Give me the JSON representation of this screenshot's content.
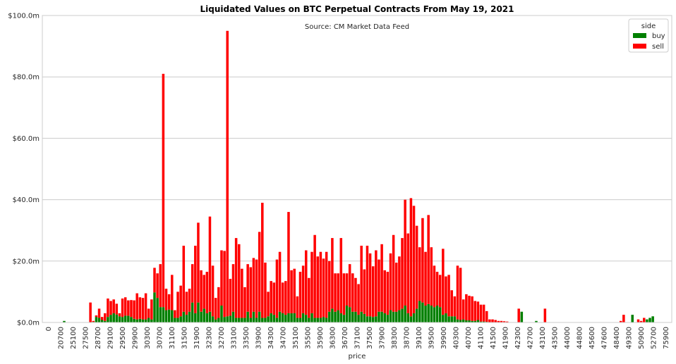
{
  "chart_data": {
    "type": "bar",
    "stacked": true,
    "title": "Liquidated Values on BTC Perpetual Contracts From May 19, 2021",
    "subtitle": "Source: CM Market Data Feed",
    "xlabel": "price",
    "ylabel": "",
    "ylim": [
      0,
      100
    ],
    "yticks": [
      0,
      20,
      40,
      60,
      80,
      100
    ],
    "ytick_labels": [
      "$0.0m",
      "$20.0m",
      "$40.0m",
      "$60.0m",
      "$80.0m",
      "$100.0m"
    ],
    "xtick_labels": [
      "0",
      "20700",
      "25100",
      "27500",
      "28700",
      "29100",
      "29500",
      "29900",
      "30300",
      "30700",
      "31100",
      "31500",
      "31900",
      "32300",
      "32700",
      "33100",
      "33500",
      "33900",
      "34300",
      "34700",
      "35100",
      "35500",
      "35900",
      "36300",
      "36700",
      "37100",
      "37500",
      "37900",
      "38300",
      "38700",
      "39100",
      "39500",
      "39900",
      "40300",
      "40700",
      "41100",
      "41500",
      "41900",
      "42300",
      "42700",
      "43100",
      "43500",
      "44000",
      "44800",
      "45600",
      "47600",
      "48400",
      "49300",
      "50900",
      "52700",
      "75900"
    ],
    "grid": "horizontal",
    "legend": {
      "title": "side",
      "placement": "top-right",
      "entries": [
        "buy",
        "sell"
      ]
    },
    "colors": {
      "buy": "#008000",
      "sell": "#ff0000"
    },
    "series": [
      {
        "name": "buy",
        "values": [
          0,
          0,
          0,
          0,
          0,
          0,
          0,
          0.5,
          0,
          0,
          0,
          0,
          0,
          0,
          0,
          0,
          0,
          0.2,
          1.8,
          1.5,
          0.8,
          0.5,
          1.8,
          2.5,
          3.0,
          2.6,
          2.0,
          1.8,
          2.2,
          2.2,
          1.8,
          1.2,
          1.0,
          1.2,
          1.0,
          1.0,
          1.5,
          1.0,
          9.8,
          8.0,
          5.0,
          5.0,
          4.0,
          4.2,
          4.0,
          1.5,
          1.5,
          2.0,
          3.5,
          2.5,
          3.5,
          6.5,
          3.0,
          6.5,
          3.5,
          4.5,
          3.0,
          3.5,
          2.0,
          1.0,
          1.5,
          5.5,
          1.8,
          2.0,
          2.2,
          3.5,
          1.5,
          1.5,
          1.5,
          1.5,
          3.5,
          1.5,
          3.5,
          1.5,
          3.5,
          1.5,
          1.5,
          2.0,
          3.0,
          2.5,
          1.5,
          3.5,
          3.0,
          2.5,
          3.0,
          3.0,
          3.0,
          1.5,
          1.5,
          3.0,
          2.5,
          1.5,
          3.0,
          1.5,
          1.5,
          1.5,
          1.8,
          1.5,
          3.5,
          4.5,
          3.5,
          4.0,
          3.0,
          2.5,
          5.5,
          5.0,
          3.5,
          3.5,
          2.5,
          3.5,
          2.8,
          2.0,
          2.0,
          1.8,
          2.0,
          3.5,
          3.5,
          3.0,
          2.5,
          4.0,
          3.5,
          3.5,
          4.0,
          4.5,
          5.5,
          3.0,
          2.0,
          3.0,
          4.5,
          7.0,
          6.5,
          5.5,
          6.0,
          5.5,
          5.0,
          5.5,
          5.0,
          2.5,
          3.0,
          2.0,
          2.0,
          2.0,
          1.0,
          0.8,
          1.0,
          0.7,
          0.7,
          0.5,
          0.5,
          0.8,
          0.3,
          0.3,
          0.2,
          0,
          0,
          0,
          0,
          0,
          0,
          0,
          0,
          0,
          0,
          0,
          3.5,
          0,
          0,
          0,
          0,
          0.5,
          0,
          0,
          0,
          0,
          0,
          0,
          0,
          0,
          0,
          0,
          0,
          0,
          0,
          0,
          0,
          0,
          0,
          0,
          0,
          0,
          0,
          0,
          0,
          0,
          0,
          0,
          0,
          0,
          0,
          0,
          0,
          0,
          2.5,
          0,
          0,
          0,
          0,
          1.0,
          1.5,
          2.0,
          0,
          0,
          0,
          0,
          0,
          0
        ],
        "extra": {}
      },
      {
        "name": "sell",
        "values": [
          0,
          0,
          0,
          0,
          0,
          0,
          0,
          0,
          0,
          0,
          0,
          0,
          0,
          0,
          0,
          0,
          6.5,
          0.3,
          0.5,
          3.0,
          1.0,
          2.5,
          6.0,
          4.5,
          4.5,
          3.5,
          1.0,
          6.0,
          6.0,
          5.0,
          5.5,
          6.0,
          8.5,
          7.0,
          7.0,
          8.5,
          3.0,
          6.5,
          8.0,
          8.0,
          14.0,
          76.0,
          7.0,
          5.0,
          11.5,
          2.5,
          8.5,
          10.0,
          21.5,
          7.5,
          7.5,
          12.5,
          22.0,
          26.0,
          13.5,
          11.0,
          13.5,
          31.0,
          16.5,
          7.0,
          10.0,
          18.0,
          21.5,
          93.0,
          12.0,
          15.5,
          26.0,
          24.0,
          16.0,
          10.0,
          15.5,
          16.5,
          17.5,
          19.0,
          26.0,
          37.5,
          18.0,
          8.0,
          10.5,
          10.5,
          19.0,
          19.5,
          10.0,
          11.0,
          33.0,
          14.0,
          14.5,
          7.0,
          15.0,
          15.5,
          21.0,
          13.0,
          20.0,
          27.0,
          20.0,
          21.5,
          19.0,
          21.5,
          16.5,
          23.0,
          12.5,
          12.0,
          24.5,
          13.5,
          10.5,
          14.0,
          12.5,
          11.0,
          10.0,
          21.5,
          14.5,
          23.0,
          20.5,
          16.5,
          21.5,
          17.0,
          22.0,
          14.0,
          14.0,
          18.5,
          25.0,
          16.0,
          17.5,
          23.0,
          34.5,
          26.0,
          38.5,
          35.0,
          27.0,
          17.5,
          27.5,
          17.5,
          29.0,
          19.0,
          13.5,
          11.0,
          10.5,
          21.5,
          12.0,
          13.5,
          8.5,
          6.5,
          17.5,
          17.0,
          6.5,
          8.5,
          8.0,
          8.0,
          6.5,
          6.0,
          5.5,
          5.5,
          3.5,
          1.0,
          1.0,
          0.8,
          0.5,
          0.5,
          0.4,
          0.3,
          0,
          0,
          0,
          4.5,
          0,
          0,
          0,
          0,
          0,
          0,
          0,
          0,
          4.5,
          0,
          0,
          0,
          0,
          0,
          0,
          0,
          0,
          0,
          0,
          0,
          0,
          0,
          0,
          0,
          0,
          0,
          0,
          0,
          0,
          0,
          0,
          0,
          0,
          0,
          0.5,
          2.5,
          0,
          0,
          0,
          0,
          1.0,
          0.5,
          1.5,
          0,
          0,
          0,
          0,
          0,
          0
        ]
      }
    ]
  }
}
